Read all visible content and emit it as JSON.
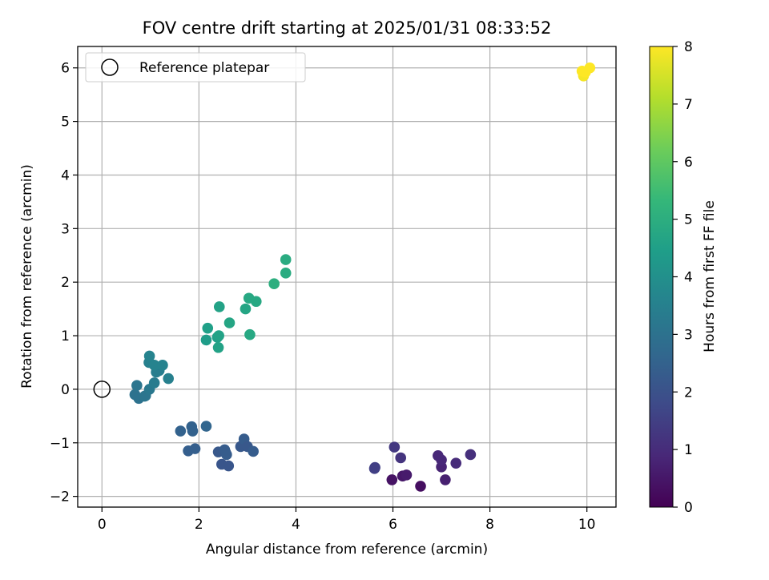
{
  "chart_data": {
    "type": "scatter",
    "title": "FOV centre drift starting at 2025/01/31 08:33:52",
    "xlabel": "Angular distance from reference (arcmin)",
    "ylabel": "Rotation from reference (arcmin)",
    "xlim": [
      -0.5,
      10.6
    ],
    "ylim": [
      -2.2,
      6.4
    ],
    "x_ticks": [
      0,
      2,
      4,
      6,
      8,
      10
    ],
    "y_ticks": [
      -2,
      -1,
      0,
      1,
      2,
      3,
      4,
      5,
      6
    ],
    "x_tick_labels": [
      "0",
      "2",
      "4",
      "6",
      "8",
      "10"
    ],
    "y_tick_labels": [
      "−2",
      "−1",
      "0",
      "1",
      "2",
      "3",
      "4",
      "5",
      "6"
    ],
    "grid": true,
    "legend": {
      "position": "top-left",
      "entries": [
        "Reference platepar"
      ]
    },
    "reference_point": {
      "label": "Reference platepar",
      "x": 0,
      "y": 0
    },
    "colorbar": {
      "label": "Hours from first FF file",
      "colormap": "viridis",
      "range": [
        0,
        8
      ],
      "ticks": [
        0,
        1,
        2,
        3,
        4,
        5,
        6,
        7,
        8
      ],
      "tick_labels": [
        "0",
        "1",
        "2",
        "3",
        "4",
        "5",
        "6",
        "7",
        "8"
      ]
    },
    "points": [
      {
        "x": 6.57,
        "y": -1.81,
        "h": 0.3
      },
      {
        "x": 5.98,
        "y": -1.69,
        "h": 0.4
      },
      {
        "x": 6.2,
        "y": -1.62,
        "h": 0.5
      },
      {
        "x": 6.28,
        "y": -1.6,
        "h": 0.6
      },
      {
        "x": 7.08,
        "y": -1.69,
        "h": 0.7
      },
      {
        "x": 7.0,
        "y": -1.45,
        "h": 0.8
      },
      {
        "x": 7.0,
        "y": -1.32,
        "h": 0.9
      },
      {
        "x": 6.93,
        "y": -1.24,
        "h": 0.9
      },
      {
        "x": 7.3,
        "y": -1.38,
        "h": 1.0
      },
      {
        "x": 7.6,
        "y": -1.22,
        "h": 1.1
      },
      {
        "x": 6.16,
        "y": -1.28,
        "h": 1.2
      },
      {
        "x": 6.03,
        "y": -1.08,
        "h": 1.3
      },
      {
        "x": 5.62,
        "y": -1.48,
        "h": 1.5
      },
      {
        "x": 5.63,
        "y": -1.46,
        "h": 1.5
      },
      {
        "x": 2.47,
        "y": -1.4,
        "h": 2.1
      },
      {
        "x": 2.61,
        "y": -1.43,
        "h": 2.1
      },
      {
        "x": 2.4,
        "y": -1.17,
        "h": 2.2
      },
      {
        "x": 2.55,
        "y": -1.18,
        "h": 2.2
      },
      {
        "x": 2.57,
        "y": -1.22,
        "h": 2.3
      },
      {
        "x": 2.53,
        "y": -1.13,
        "h": 2.3
      },
      {
        "x": 2.86,
        "y": -1.07,
        "h": 2.2
      },
      {
        "x": 2.93,
        "y": -0.93,
        "h": 2.3
      },
      {
        "x": 3.0,
        "y": -1.07,
        "h": 2.2
      },
      {
        "x": 3.12,
        "y": -1.16,
        "h": 2.3
      },
      {
        "x": 1.78,
        "y": -1.15,
        "h": 2.4
      },
      {
        "x": 1.92,
        "y": -1.11,
        "h": 2.4
      },
      {
        "x": 1.62,
        "y": -0.78,
        "h": 2.5
      },
      {
        "x": 1.85,
        "y": -0.7,
        "h": 2.5
      },
      {
        "x": 1.87,
        "y": -0.78,
        "h": 2.5
      },
      {
        "x": 2.15,
        "y": -0.69,
        "h": 2.6
      },
      {
        "x": 0.68,
        "y": -0.1,
        "h": 3.0
      },
      {
        "x": 0.76,
        "y": -0.17,
        "h": 3.0
      },
      {
        "x": 0.9,
        "y": -0.12,
        "h": 3.1
      },
      {
        "x": 0.88,
        "y": -0.13,
        "h": 3.1
      },
      {
        "x": 0.72,
        "y": 0.07,
        "h": 3.1
      },
      {
        "x": 0.98,
        "y": 0.0,
        "h": 3.2
      },
      {
        "x": 1.08,
        "y": 0.12,
        "h": 3.3
      },
      {
        "x": 1.12,
        "y": 0.32,
        "h": 3.4
      },
      {
        "x": 1.18,
        "y": 0.35,
        "h": 3.4
      },
      {
        "x": 1.37,
        "y": 0.2,
        "h": 3.5
      },
      {
        "x": 0.97,
        "y": 0.5,
        "h": 3.5
      },
      {
        "x": 0.98,
        "y": 0.62,
        "h": 3.6
      },
      {
        "x": 1.08,
        "y": 0.45,
        "h": 3.6
      },
      {
        "x": 1.25,
        "y": 0.45,
        "h": 3.6
      },
      {
        "x": 2.15,
        "y": 0.92,
        "h": 4.4
      },
      {
        "x": 2.18,
        "y": 1.14,
        "h": 4.5
      },
      {
        "x": 2.38,
        "y": 0.97,
        "h": 4.5
      },
      {
        "x": 2.41,
        "y": 1.0,
        "h": 4.6
      },
      {
        "x": 2.4,
        "y": 0.78,
        "h": 4.6
      },
      {
        "x": 2.42,
        "y": 1.54,
        "h": 4.6
      },
      {
        "x": 2.63,
        "y": 1.24,
        "h": 4.7
      },
      {
        "x": 3.05,
        "y": 1.02,
        "h": 4.8
      },
      {
        "x": 2.96,
        "y": 1.5,
        "h": 4.7
      },
      {
        "x": 3.03,
        "y": 1.7,
        "h": 4.8
      },
      {
        "x": 3.18,
        "y": 1.64,
        "h": 4.8
      },
      {
        "x": 3.55,
        "y": 1.97,
        "h": 5.0
      },
      {
        "x": 3.79,
        "y": 2.17,
        "h": 4.9
      },
      {
        "x": 3.79,
        "y": 2.42,
        "h": 4.9
      },
      {
        "x": 9.93,
        "y": 5.85,
        "h": 7.9
      },
      {
        "x": 9.97,
        "y": 5.92,
        "h": 8.0
      },
      {
        "x": 10.06,
        "y": 6.0,
        "h": 8.0
      },
      {
        "x": 9.9,
        "y": 5.94,
        "h": 8.0
      }
    ]
  }
}
